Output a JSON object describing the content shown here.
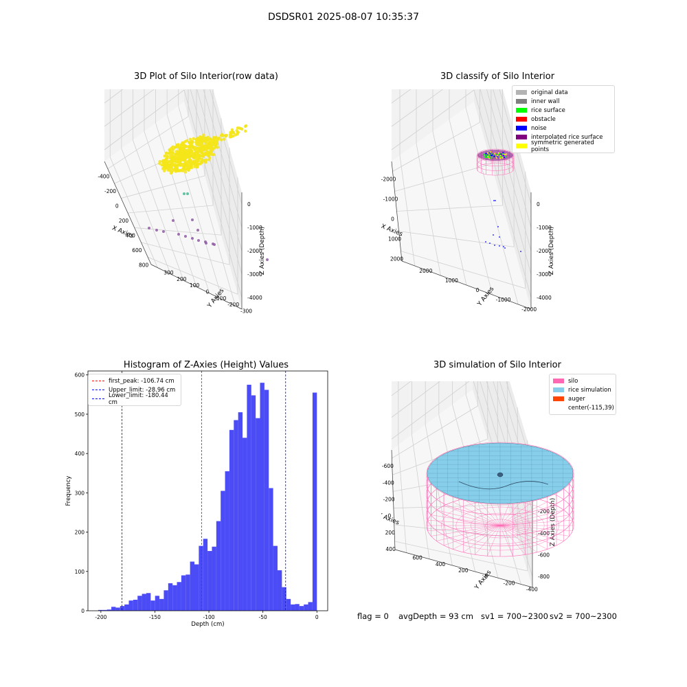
{
  "suptitle": "DSDSR01 2025-08-07 10:35:37",
  "chart_data": [
    {
      "type": "scatter",
      "title": "3D Plot of Silo Interior(row data)",
      "xlabel": "X Axies",
      "ylabel": "Y Axies",
      "zlabel": "Z Axies (Depth)",
      "x_ticks": [
        "-400",
        "-200",
        "0",
        "200",
        "400",
        "600",
        "800"
      ],
      "y_ticks": [
        "-300",
        "-200",
        "-100",
        "0",
        "100",
        "200",
        "300"
      ],
      "z_ticks": [
        "0",
        "-1000",
        "-2000",
        "-3000",
        "-4000"
      ],
      "colors": {
        "surface": "#f5e61a",
        "mid": "#5ec4a2",
        "low": "#8e5ba3"
      }
    },
    {
      "type": "scatter",
      "title": "3D classify of Silo Interior",
      "xlabel": "X Axies",
      "ylabel": "Y Axies",
      "zlabel": "Z Axies (Depth)",
      "x_ticks": [
        "-2000",
        "-1000",
        "0",
        "1000",
        "2000"
      ],
      "y_ticks": [
        "-2000",
        "-1000",
        "0",
        "1000",
        "2000"
      ],
      "z_ticks": [
        "0",
        "-1000",
        "-2000",
        "-3000",
        "-4000"
      ],
      "legend": [
        {
          "label": "original data",
          "color": "#b3b3b3"
        },
        {
          "label": "inner wall",
          "color": "#808080"
        },
        {
          "label": "rice surface",
          "color": "#00ff00"
        },
        {
          "label": "obstacle",
          "color": "#ff0000"
        },
        {
          "label": "noise",
          "color": "#0000ff"
        },
        {
          "label": "interpolated rice surface",
          "color": "#800080"
        },
        {
          "label": "symmetric generated points",
          "color": "#ffff00"
        }
      ]
    },
    {
      "type": "bar",
      "title": "Histogram of Z-Axies (Height) Values",
      "xlabel": "Depth (cm)",
      "ylabel": "Frequency",
      "xlim": [
        -212,
        10
      ],
      "ylim": [
        0,
        610
      ],
      "x_ticks": [
        -200,
        -150,
        -100,
        -50,
        0
      ],
      "y_ticks": [
        0,
        100,
        200,
        300,
        400,
        500,
        600
      ],
      "bar_color": "#4c4cf7",
      "bins": [
        [
          -202.5,
          -200,
          2
        ],
        [
          -200,
          -197.5,
          2
        ],
        [
          -197.5,
          -195,
          3
        ],
        [
          -195,
          -192.5,
          10
        ],
        [
          -192.5,
          -190,
          8
        ],
        [
          -190,
          -187.5,
          12
        ],
        [
          -187.5,
          -185,
          16
        ],
        [
          -185,
          -182.5,
          26
        ],
        [
          -182.5,
          -180,
          28
        ],
        [
          -180,
          -177.5,
          38
        ],
        [
          -177.5,
          -175,
          43
        ],
        [
          -175,
          -172.5,
          45
        ],
        [
          -172.5,
          -170,
          26
        ],
        [
          -170,
          -167.5,
          38
        ],
        [
          -167.5,
          -165,
          30
        ],
        [
          -165,
          -162.5,
          52
        ],
        [
          -162.5,
          -160,
          70
        ],
        [
          -160,
          -157.5,
          65
        ],
        [
          -157.5,
          -155,
          73
        ],
        [
          -155,
          -152.5,
          90
        ],
        [
          -152.5,
          -150,
          92
        ],
        [
          -150,
          -147.5,
          125
        ],
        [
          -147.5,
          -145,
          118
        ],
        [
          -145,
          -142.5,
          165
        ],
        [
          -142.5,
          -140,
          183
        ],
        [
          -140,
          -137.5,
          152
        ],
        [
          -137.5,
          -135,
          163
        ],
        [
          -135,
          -132.5,
          228
        ],
        [
          -132.5,
          -130,
          305
        ],
        [
          -130,
          -127.5,
          355
        ],
        [
          -127.5,
          -125,
          460
        ],
        [
          -125,
          -122.5,
          485
        ],
        [
          -122.5,
          -120,
          505
        ],
        [
          -120,
          -117.5,
          440
        ],
        [
          -117.5,
          -115,
          575
        ],
        [
          -115,
          -112.5,
          548
        ],
        [
          -112.5,
          -110,
          490
        ],
        [
          -110,
          -107.5,
          580
        ],
        [
          -107.5,
          -105,
          562
        ],
        [
          -105,
          -102.5,
          312
        ],
        [
          -102.5,
          -100,
          165
        ],
        [
          -100,
          -97.5,
          103
        ],
        [
          -97.5,
          -95,
          60
        ],
        [
          -95,
          -92.5,
          30
        ],
        [
          -92.5,
          -90,
          16
        ],
        [
          -90,
          -87.5,
          17
        ],
        [
          -87.5,
          -85,
          12
        ],
        [
          -85,
          -82.5,
          16
        ],
        [
          -82.5,
          -80,
          22
        ],
        [
          -80,
          -77.5,
          555
        ]
      ],
      "lines": [
        {
          "label": "first_peak: -106.74 cm",
          "value": -106.74,
          "color": "#ff0000"
        },
        {
          "label": "Upper_limit: -28.96 cm",
          "value": -28.96,
          "color": "#0000ff"
        },
        {
          "label": "Lower_limit: -180.44 cm",
          "value": -180.44,
          "color": "#0000ff"
        }
      ]
    },
    {
      "type": "surface",
      "title": "3D simulation of Silo Interior",
      "xlabel": "X Axies",
      "ylabel": "Y Axies",
      "zlabel": "Z Axies (Depth)",
      "x_ticks": [
        "-600",
        "-400",
        "-200",
        "0",
        "200",
        "400"
      ],
      "y_ticks": [
        "-400",
        "-200",
        "0",
        "200",
        "400",
        "600"
      ],
      "z_ticks": [
        "200",
        "0",
        "-200",
        "-400",
        "-600",
        "-800"
      ],
      "legend": [
        {
          "label": "silo",
          "color": "#ff69b4"
        },
        {
          "label": "rice simulation",
          "color": "#87ceeb"
        },
        {
          "label": "auger",
          "color": "#ff4500"
        },
        {
          "label": "center(-115,39)",
          "color": ""
        }
      ]
    }
  ],
  "status": {
    "flag": "flag = 0",
    "avg": "avgDepth = 93 cm",
    "sv1": "sv1 = 700~2300",
    "sv2": "sv2 = 700~2300"
  }
}
